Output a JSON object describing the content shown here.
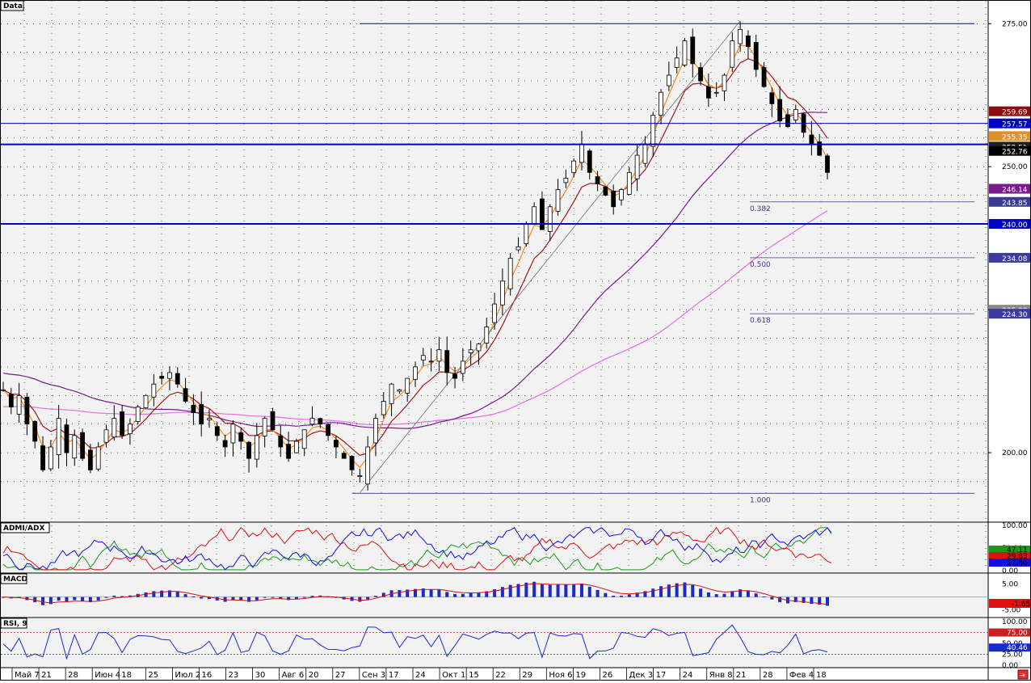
{
  "panels": {
    "main_title": "Data",
    "admi_title": "ADMI/ADX",
    "macd_title": "MACD",
    "rsi_title": "RSI, 9"
  },
  "colors": {
    "background": "#f2f2f2",
    "up_candle": "#ffffff",
    "down_candle": "#000000",
    "ema_fast": "#f08c1e",
    "ema_mid": "#a01818",
    "sma_slow": "#7a1a8c",
    "sma_long": "#e36ee3",
    "level_line": "#0000c8",
    "adx": "#1a9a1a",
    "di_plus": "#e01010",
    "di_minus": "#1010e0",
    "macd_hist": "#1a2acc",
    "macd_signal": "#d01010",
    "rsi": "#1a2acc"
  },
  "chart_data": {
    "type": "candlestick",
    "price_axis_ticks": [
      "275.00",
      "250.00",
      "225.00",
      "200.00"
    ],
    "price_ylim": [
      188,
      279
    ],
    "time_axis_labels": [
      "Май 7",
      "21",
      "28",
      "Июн 4",
      "18",
      "25",
      "Июл 2",
      "16",
      "23",
      "30",
      "Авг 6",
      "20",
      "27",
      "Сен 3",
      "17",
      "24",
      "Окт 1",
      "15",
      "22",
      "29",
      "Ноя 6",
      "19",
      "26",
      "Дек 3",
      "17",
      "24",
      "Янв 8",
      "21",
      "28",
      "Фев 4",
      "18"
    ],
    "close_series": [
      211,
      208,
      210,
      205,
      202,
      197,
      201,
      206,
      200,
      203,
      199,
      197,
      201,
      204,
      206,
      203,
      205,
      208,
      210,
      212,
      213,
      214,
      212,
      209,
      207,
      205,
      206,
      203,
      201,
      205,
      202,
      199,
      203,
      206,
      204,
      201,
      199,
      202,
      204,
      206,
      205,
      203,
      201,
      199,
      197,
      196,
      201,
      206,
      209,
      212,
      211,
      213,
      215,
      217,
      216,
      218,
      214,
      213,
      216,
      218,
      219,
      222,
      226,
      230,
      234,
      236,
      240,
      243,
      239,
      243,
      246,
      248,
      251,
      254,
      249,
      247,
      245,
      243,
      246,
      249,
      252,
      254,
      259,
      263,
      266,
      269,
      272,
      268,
      265,
      262,
      263,
      266,
      272,
      274,
      271,
      267,
      264,
      261,
      258,
      257,
      260,
      256,
      254,
      252,
      249
    ],
    "price_boxes": [
      {
        "label": "259.69",
        "value": 259.69,
        "color": "#8c0e0e"
      },
      {
        "label": "257.57",
        "value": 257.57,
        "color": "#0000c8"
      },
      {
        "label": "255.35",
        "value": 255.35,
        "color": "#e0902c"
      },
      {
        "label": "253.51",
        "value": 253.51,
        "color": "#202020"
      },
      {
        "label": "252.76",
        "value": 252.76,
        "color": "#000000"
      },
      {
        "label": "246.14",
        "value": 246.14,
        "color": "#7a1a8c"
      },
      {
        "label": "243.85",
        "value": 243.85,
        "color": "#3a3a90"
      },
      {
        "label": "240.00",
        "value": 240.0,
        "color": "#0000c8"
      },
      {
        "label": "234.08",
        "value": 234.08,
        "color": "#3a3aa0"
      },
      {
        "label": "225.00",
        "value": 225.0,
        "color": "#888888"
      },
      {
        "label": "224.30",
        "value": 224.3,
        "color": "#3a3aa0"
      }
    ],
    "horizontal_levels": [
      275.0,
      257.57,
      253.9,
      240.0
    ],
    "fibonacci": [
      {
        "label": "0.382",
        "value": 243.85
      },
      {
        "label": "0.500",
        "value": 234.08
      },
      {
        "label": "0.618",
        "value": 224.3
      },
      {
        "label": "1.000",
        "value": 192.9
      }
    ],
    "admi": {
      "ticks": [
        "100.00",
        "50.00",
        "0.00"
      ],
      "ylim": [
        0,
        100
      ],
      "values": [
        {
          "label": "47.11",
          "color": "#1a9a1a"
        },
        {
          "label": "29.83",
          "color": "#e01010"
        },
        {
          "label": "17.86",
          "color": "#1010e0"
        }
      ]
    },
    "macd": {
      "ticks": [
        "5.00",
        "-5.00"
      ],
      "ylim": [
        -7,
        8
      ],
      "value": {
        "label": "-1.65",
        "color": "#e01010"
      }
    },
    "rsi": {
      "ticks": [
        "100.00",
        "50.00",
        "25.00",
        "0.00"
      ],
      "ylim": [
        0,
        100
      ],
      "levels": [
        {
          "label": "75.00",
          "color": "#cc2020"
        },
        {
          "label": "40.46",
          "color": "#1a2acc"
        }
      ],
      "overbought": 75,
      "oversold": 25
    }
  }
}
